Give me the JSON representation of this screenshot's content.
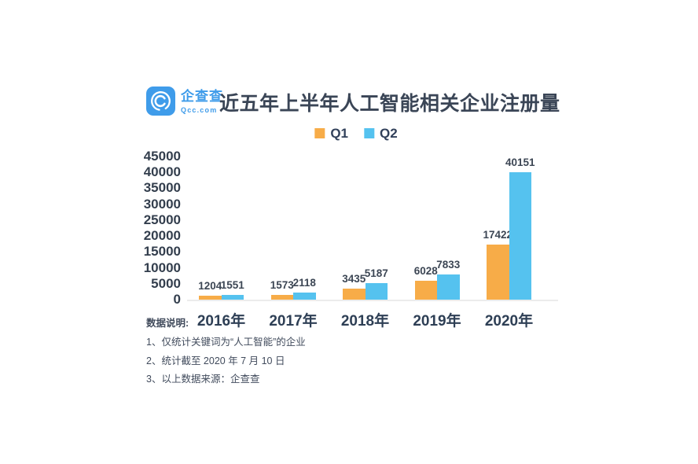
{
  "brand": {
    "name": "企查查",
    "domain": "Qcc.com",
    "color": "#3F9CEA"
  },
  "title": "近五年上半年人工智能相关企业注册量",
  "chart_data": {
    "type": "bar",
    "title": "近五年上半年人工智能相关企业注册量",
    "categories": [
      "2016年",
      "2017年",
      "2018年",
      "2019年",
      "2020年"
    ],
    "series": [
      {
        "name": "Q1",
        "color": "#F7AC48",
        "values": [
          1204,
          1573,
          3435,
          6028,
          17422
        ]
      },
      {
        "name": "Q2",
        "color": "#55C2EF",
        "values": [
          1551,
          2118,
          5187,
          7833,
          40151
        ]
      }
    ],
    "xlabel": "",
    "ylabel": "",
    "ylim": [
      0,
      45000
    ],
    "ytick_step": 5000,
    "yticks": [
      0,
      5000,
      10000,
      15000,
      20000,
      25000,
      30000,
      35000,
      40000,
      45000
    ],
    "grid": false,
    "legend_position": "top",
    "data_labels": true
  },
  "footnotes": {
    "heading": "数据说明:",
    "items": [
      "1、仅统计关键词为“人工智能”的企业",
      "2、统计截至 2020 年 7 月 10 日",
      "3、以上数据来源：企查查"
    ]
  }
}
